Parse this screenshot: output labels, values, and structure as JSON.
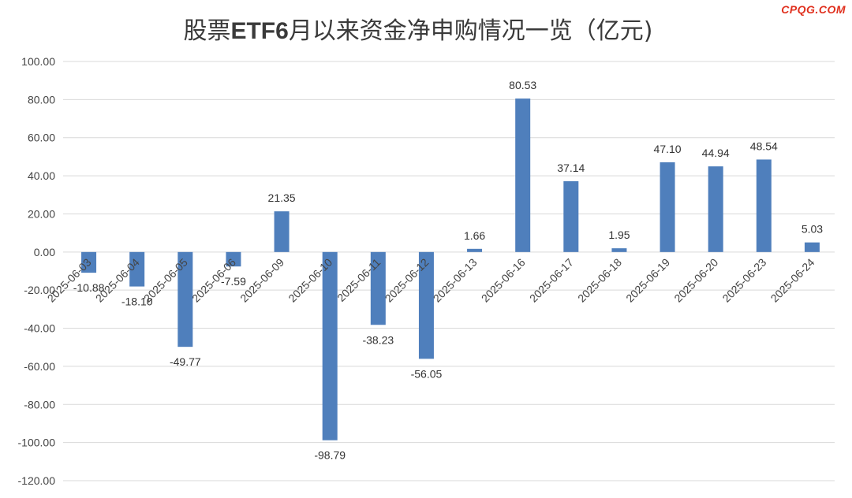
{
  "watermark": "CPQG.COM",
  "colors": {
    "bar": "#4f7fbc",
    "grid": "#d9d9d9",
    "watermark": "#e0301e"
  },
  "chart_data": {
    "type": "bar",
    "title": "股票ETF6月以来资金净申购情况一览（亿元)",
    "title_parts": {
      "pre": "股票",
      "bold": "ETF6",
      "post": "月以来资金净申购情况一览（亿元)"
    },
    "xlabel": "",
    "ylabel": "",
    "ylim": [
      -120,
      100
    ],
    "yticks": [
      "100.00",
      "80.00",
      "60.00",
      "40.00",
      "20.00",
      "0.00",
      "-20.00",
      "-40.00",
      "-60.00",
      "-80.00",
      "-100.00",
      "-120.00"
    ],
    "ytick_values": [
      100,
      80,
      60,
      40,
      20,
      0,
      -20,
      -40,
      -60,
      -80,
      -100,
      -120
    ],
    "grid": true,
    "legend": "none",
    "categories": [
      "2025-06-03",
      "2025-06-04",
      "2025-06-05",
      "2025-06-06",
      "2025-06-09",
      "2025-06-10",
      "2025-06-11",
      "2025-06-12",
      "2025-06-13",
      "2025-06-16",
      "2025-06-17",
      "2025-06-18",
      "2025-06-19",
      "2025-06-20",
      "2025-06-23",
      "2025-06-24"
    ],
    "values": [
      -10.88,
      -18.1,
      -49.77,
      -7.59,
      21.35,
      -98.79,
      -38.23,
      -56.05,
      1.66,
      80.53,
      37.14,
      1.95,
      47.1,
      44.94,
      48.54,
      5.03
    ],
    "labels": [
      "-10.88",
      "-18.10",
      "-49.77",
      "-7.59",
      "21.35",
      "-98.79",
      "-38.23",
      "-56.05",
      "1.66",
      "80.53",
      "37.14",
      "1.95",
      "47.10",
      "44.94",
      "48.54",
      "5.03"
    ]
  }
}
